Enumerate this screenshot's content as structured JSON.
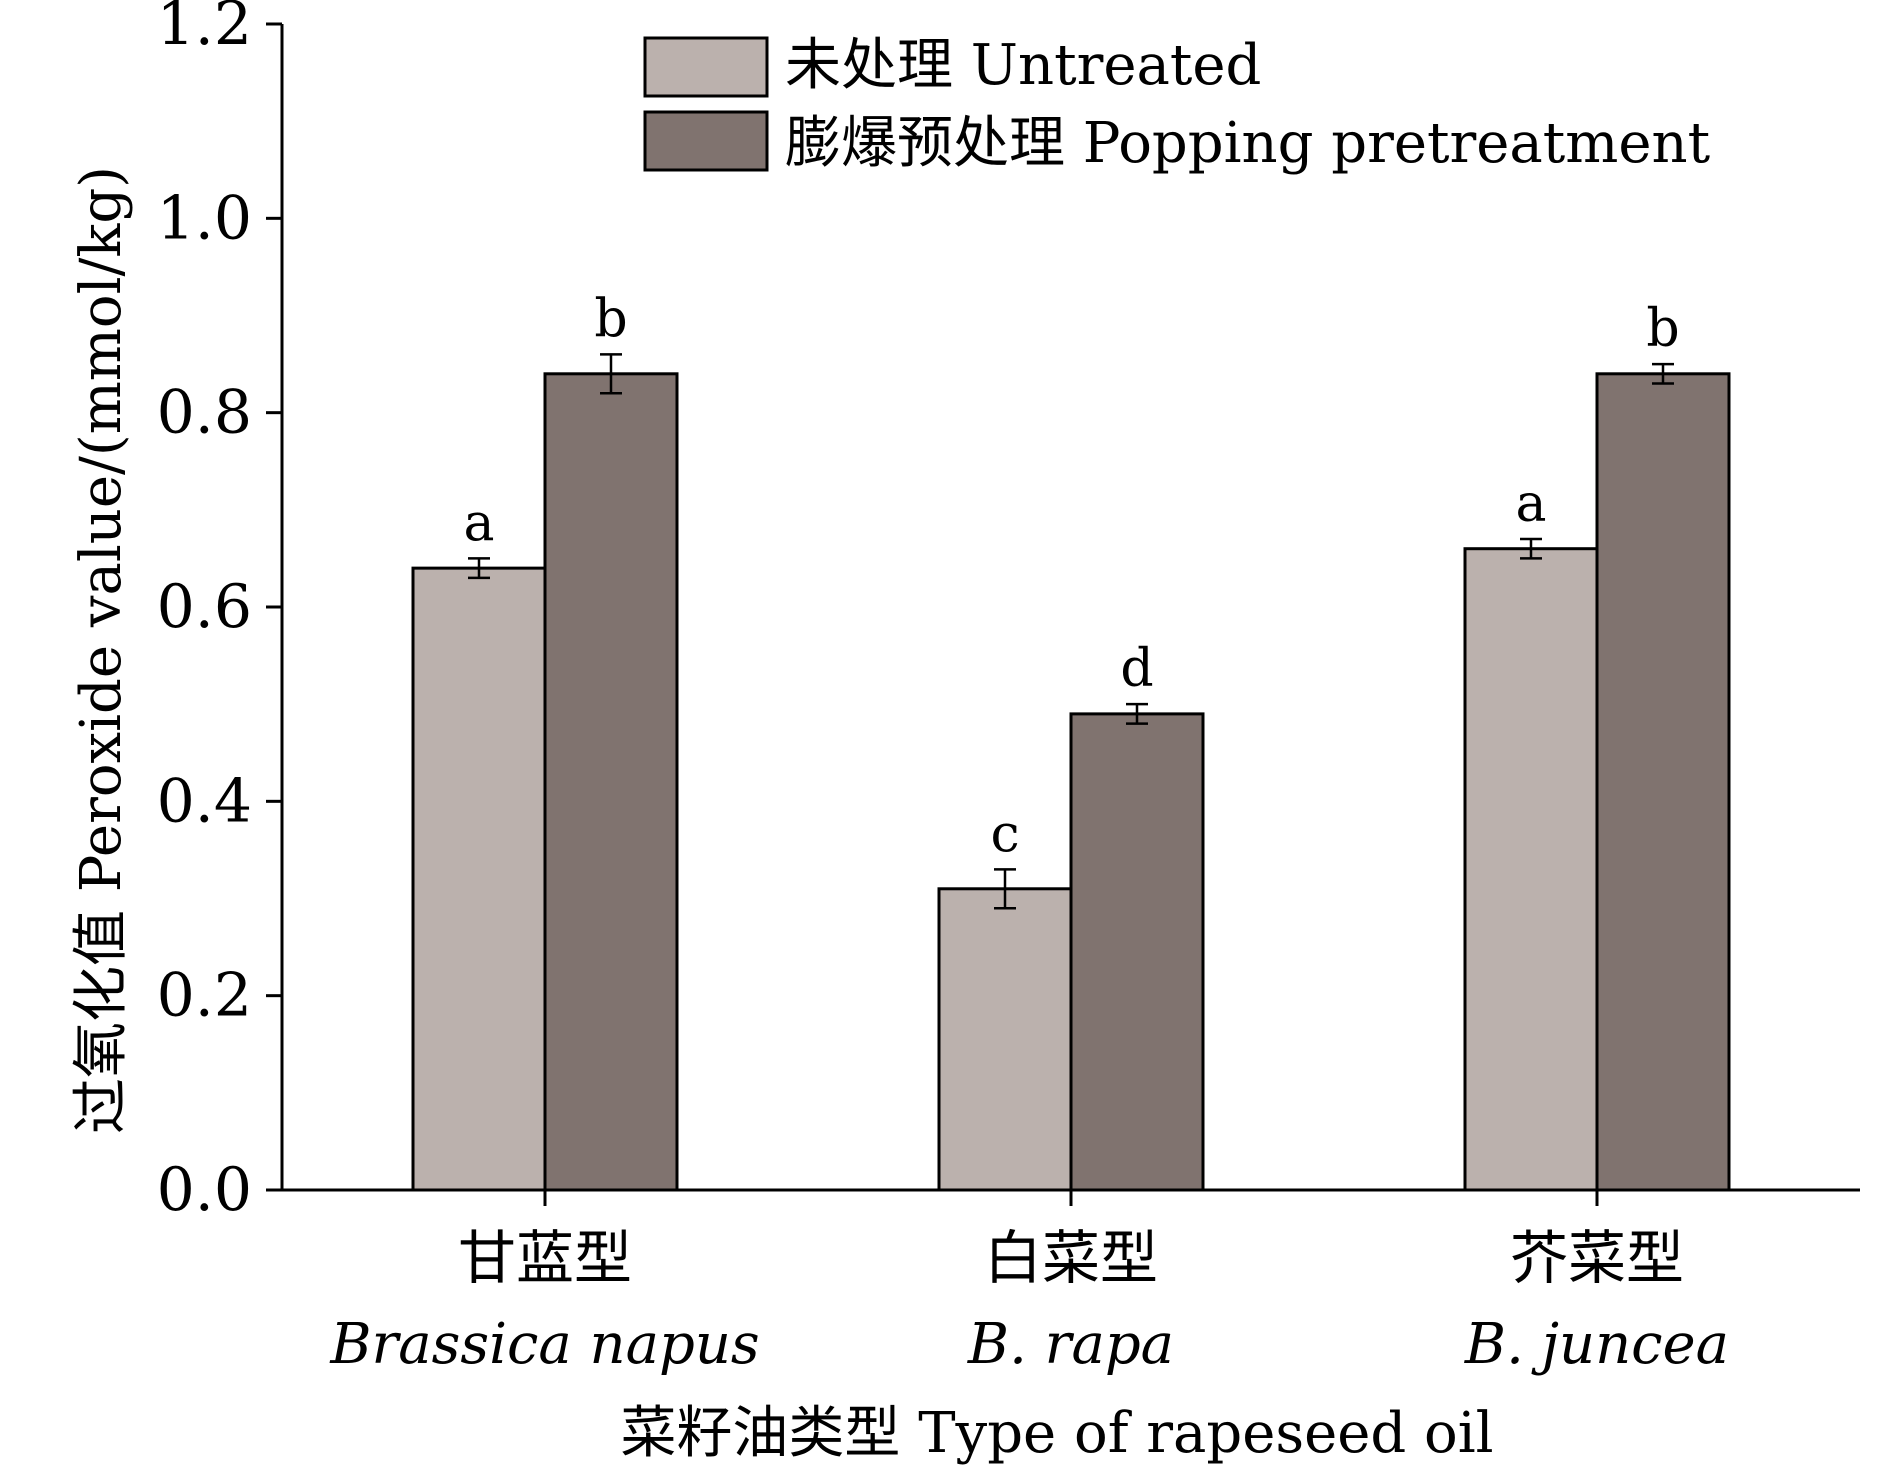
{
  "chart_data": {
    "type": "bar",
    "title": "",
    "xlabel": "菜籽油类型 Type of rapeseed oil",
    "ylabel": "过氧化值 Peroxide value/(mmol/kg)",
    "ylim": [
      0,
      1.2
    ],
    "yticks": [
      "0.0",
      "0.2",
      "0.4",
      "0.6",
      "0.8",
      "1.0",
      "1.2"
    ],
    "categories": [
      "甘蓝型",
      "白菜型",
      "芥菜型"
    ],
    "category_subtitles": [
      "Brassica napus",
      "B. rapa",
      "B. juncea"
    ],
    "legend_position": "top",
    "grid": false,
    "series": [
      {
        "name": "未处理 Untreated",
        "color": "#bbb1ad",
        "values": [
          0.64,
          0.31,
          0.66
        ],
        "errors": [
          0.01,
          0.02,
          0.01
        ],
        "labels": [
          "a",
          "c",
          "a"
        ]
      },
      {
        "name": "膨爆预处理 Popping pretreatment",
        "color": "#80736f",
        "values": [
          0.84,
          0.49,
          0.84
        ],
        "errors": [
          0.02,
          0.01,
          0.01
        ],
        "labels": [
          "b",
          "d",
          "b"
        ]
      }
    ]
  }
}
